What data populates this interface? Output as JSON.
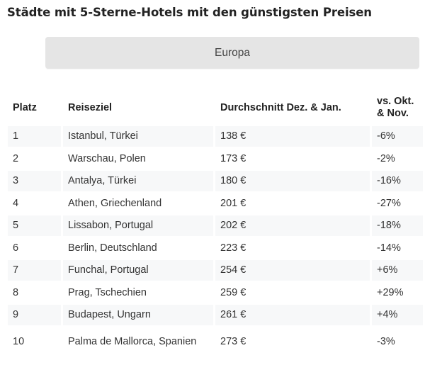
{
  "page": {
    "title": "Städte mit 5-Sterne-Hotels mit den günstigsten Preisen"
  },
  "region_selector": {
    "selected_label": "Europa"
  },
  "table": {
    "headers": {
      "rank": "Platz",
      "destination": "Reiseziel",
      "average": "Durchschnitt Dez. & Jan.",
      "change": "vs. Okt. & Nov."
    },
    "rows": [
      {
        "rank": "1",
        "destination": "Istanbul, Türkei",
        "average": "138 €",
        "change": "-6%"
      },
      {
        "rank": "2",
        "destination": "Warschau, Polen",
        "average": "173 €",
        "change": "-2%"
      },
      {
        "rank": "3",
        "destination": "Antalya, Türkei",
        "average": "180 €",
        "change": "-16%"
      },
      {
        "rank": "4",
        "destination": "Athen, Griechenland",
        "average": "201 €",
        "change": "-27%"
      },
      {
        "rank": "5",
        "destination": "Lissabon, Portugal",
        "average": "202 €",
        "change": "-18%"
      },
      {
        "rank": "6",
        "destination": "Berlin, Deutschland",
        "average": "223 €",
        "change": "-14%"
      },
      {
        "rank": "7",
        "destination": "Funchal, Portugal",
        "average": "254 €",
        "change": "+6%"
      },
      {
        "rank": "8",
        "destination": "Prag, Tschechien",
        "average": "259 €",
        "change": "+29%"
      },
      {
        "rank": "9",
        "destination": "Budapest, Ungarn",
        "average": "261 €",
        "change": "+4%"
      },
      {
        "rank": "10",
        "destination": "Palma de Mallorca, Spanien",
        "average": "273 €",
        "change": "-3%"
      }
    ]
  },
  "colors": {
    "button_bg": "#e5e5e5",
    "stripe_bg": "#f7f8f9",
    "text": "#333333",
    "heading": "#222222"
  }
}
